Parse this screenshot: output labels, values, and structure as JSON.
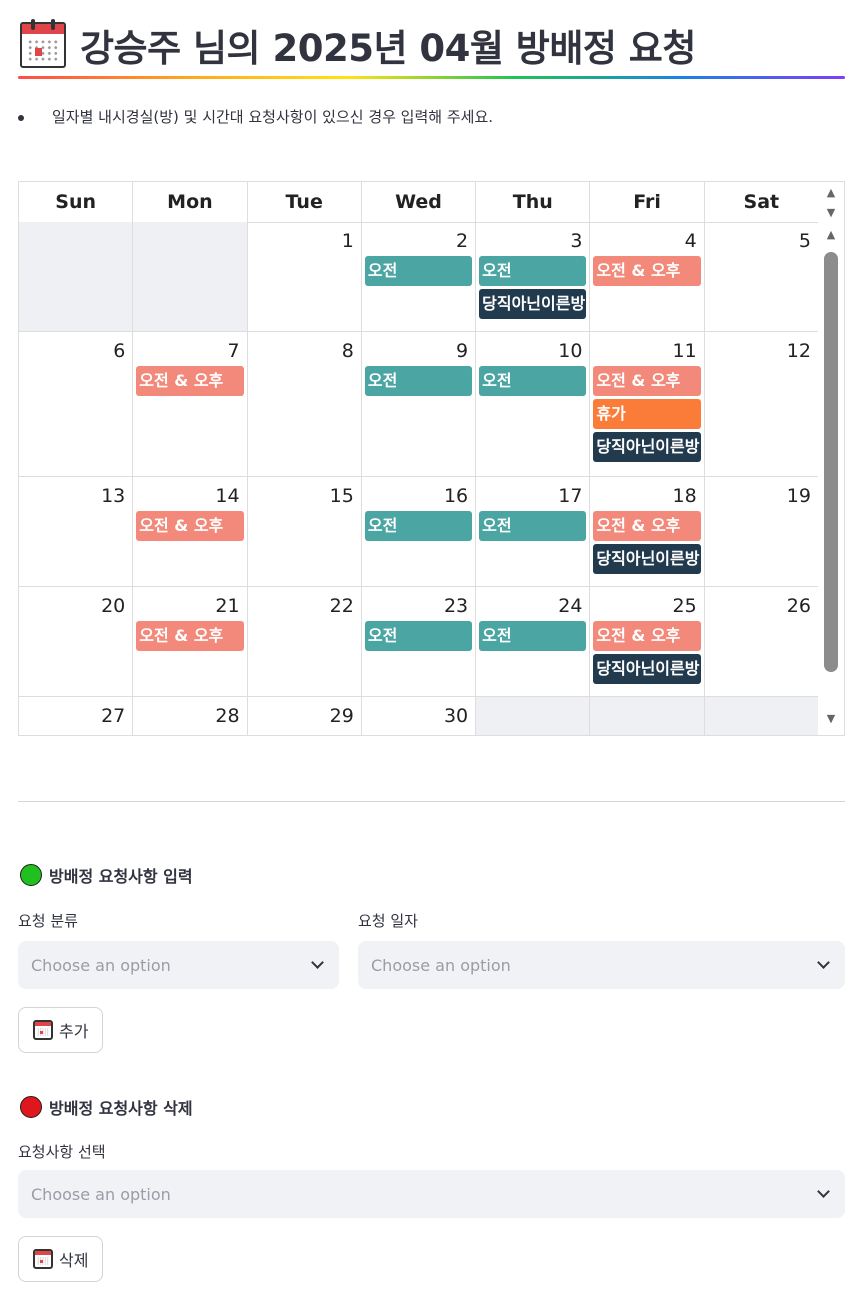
{
  "page": {
    "title": "강승주 님의 2025년 04월 방배정 요청",
    "note": "일자별 내시경실(방) 및 시간대 요청사항이 있으신 경우 입력해 주세요."
  },
  "calendar": {
    "weekdays": [
      "Sun",
      "Mon",
      "Tue",
      "Wed",
      "Thu",
      "Fri",
      "Sat"
    ],
    "weeks": [
      [
        {
          "day": "",
          "other": true,
          "events": []
        },
        {
          "day": "",
          "other": true,
          "events": []
        },
        {
          "day": "1",
          "events": []
        },
        {
          "day": "2",
          "events": [
            {
              "type": "am",
              "label": "오전"
            }
          ]
        },
        {
          "day": "3",
          "events": [
            {
              "type": "am",
              "label": "오전"
            },
            {
              "type": "note",
              "label": "당직아닌이른방"
            }
          ]
        },
        {
          "day": "4",
          "events": [
            {
              "type": "both",
              "label": "오전 & 오후"
            }
          ]
        },
        {
          "day": "5",
          "events": []
        }
      ],
      [
        {
          "day": "6",
          "events": []
        },
        {
          "day": "7",
          "events": [
            {
              "type": "both",
              "label": "오전 & 오후"
            }
          ]
        },
        {
          "day": "8",
          "events": []
        },
        {
          "day": "9",
          "events": [
            {
              "type": "am",
              "label": "오전"
            }
          ]
        },
        {
          "day": "10",
          "events": [
            {
              "type": "am",
              "label": "오전"
            }
          ]
        },
        {
          "day": "11",
          "events": [
            {
              "type": "both",
              "label": "오전 & 오후"
            },
            {
              "type": "leave",
              "label": "휴가"
            },
            {
              "type": "note",
              "label": "당직아닌이른방"
            }
          ]
        },
        {
          "day": "12",
          "events": []
        }
      ],
      [
        {
          "day": "13",
          "events": []
        },
        {
          "day": "14",
          "events": [
            {
              "type": "both",
              "label": "오전 & 오후"
            }
          ]
        },
        {
          "day": "15",
          "events": []
        },
        {
          "day": "16",
          "events": [
            {
              "type": "am",
              "label": "오전"
            }
          ]
        },
        {
          "day": "17",
          "events": [
            {
              "type": "am",
              "label": "오전"
            }
          ]
        },
        {
          "day": "18",
          "events": [
            {
              "type": "both",
              "label": "오전 & 오후"
            },
            {
              "type": "note",
              "label": "당직아닌이른방"
            }
          ]
        },
        {
          "day": "19",
          "events": []
        }
      ],
      [
        {
          "day": "20",
          "events": []
        },
        {
          "day": "21",
          "events": [
            {
              "type": "both",
              "label": "오전 & 오후"
            }
          ]
        },
        {
          "day": "22",
          "events": []
        },
        {
          "day": "23",
          "events": [
            {
              "type": "am",
              "label": "오전"
            }
          ]
        },
        {
          "day": "24",
          "events": [
            {
              "type": "am",
              "label": "오전"
            }
          ]
        },
        {
          "day": "25",
          "events": [
            {
              "type": "both",
              "label": "오전 & 오후"
            },
            {
              "type": "note",
              "label": "당직아닌이른방"
            }
          ]
        },
        {
          "day": "26",
          "events": []
        }
      ],
      [
        {
          "day": "27",
          "events": []
        },
        {
          "day": "28",
          "events": []
        },
        {
          "day": "29",
          "events": []
        },
        {
          "day": "30",
          "events": []
        },
        {
          "day": "",
          "other": true,
          "events": []
        },
        {
          "day": "",
          "other": true,
          "events": []
        },
        {
          "day": "",
          "other": true,
          "events": []
        }
      ]
    ]
  },
  "add_section": {
    "heading": "방배정 요청사항 입력",
    "category_label": "요청 분류",
    "category_placeholder": "Choose an option",
    "date_label": "요청 일자",
    "date_placeholder": "Choose an option",
    "button_label": "추가"
  },
  "delete_section": {
    "heading": "방배정 요청사항 삭제",
    "select_label": "요청사항 선택",
    "select_placeholder": "Choose an option",
    "button_label": "삭제"
  },
  "colors": {
    "am": "#4aa5a3",
    "both": "#f2897a",
    "leave": "#fb7c39",
    "note": "#223a4e",
    "green_dot": "#1fc01f",
    "red_dot": "#e0161f"
  },
  "icons": {
    "title": "calendar-icon",
    "add_button": "calendar-icon",
    "delete_button": "calendar-icon"
  }
}
